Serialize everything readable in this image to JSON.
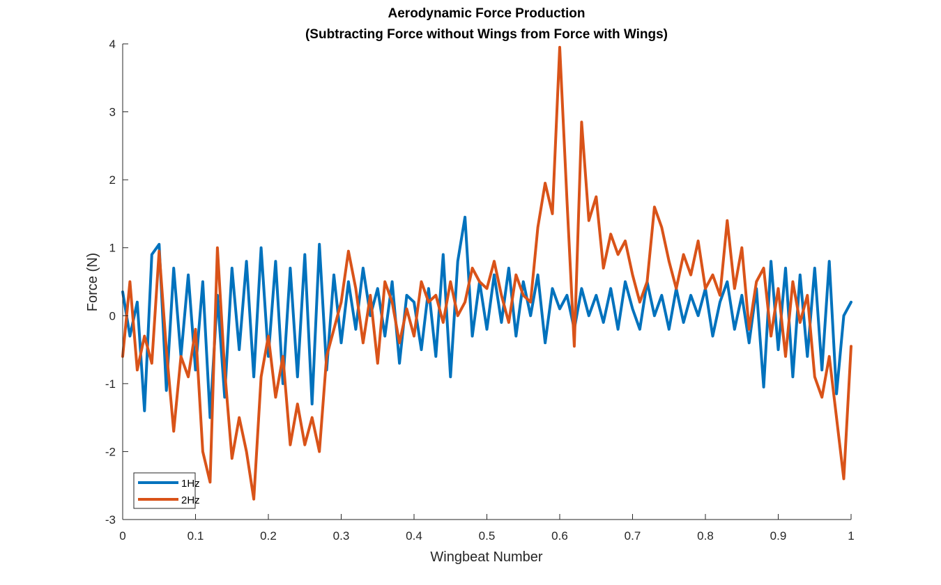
{
  "chart_data": {
    "type": "line",
    "title_line1": "Aerodynamic Force Production",
    "title_line2": "(Subtracting Force without Wings from Force with Wings)",
    "xlabel": "Wingbeat Number",
    "ylabel": "Force (N)",
    "xlim": [
      0,
      1
    ],
    "ylim": [
      -3,
      4
    ],
    "xticks": [
      0,
      0.1,
      0.2,
      0.3,
      0.4,
      0.5,
      0.6,
      0.7,
      0.8,
      0.9,
      1
    ],
    "xtick_labels": [
      "0",
      "0.1",
      "0.2",
      "0.3",
      "0.4",
      "0.5",
      "0.6",
      "0.7",
      "0.8",
      "0.9",
      "1"
    ],
    "yticks": [
      -3,
      -2,
      -1,
      0,
      1,
      2,
      3,
      4
    ],
    "ytick_labels": [
      "-3",
      "-2",
      "-1",
      "0",
      "1",
      "2",
      "3",
      "4"
    ],
    "grid": false,
    "legend_position": "bottom-left",
    "series": [
      {
        "name": "1Hz",
        "color": "#0072BD",
        "x": [
          0,
          0.01,
          0.02,
          0.03,
          0.04,
          0.05,
          0.06,
          0.07,
          0.08,
          0.09,
          0.1,
          0.11,
          0.12,
          0.13,
          0.14,
          0.15,
          0.16,
          0.17,
          0.18,
          0.19,
          0.2,
          0.21,
          0.22,
          0.23,
          0.24,
          0.25,
          0.26,
          0.27,
          0.28,
          0.29,
          0.3,
          0.31,
          0.32,
          0.33,
          0.34,
          0.35,
          0.36,
          0.37,
          0.38,
          0.39,
          0.4,
          0.41,
          0.42,
          0.43,
          0.44,
          0.45,
          0.46,
          0.47,
          0.48,
          0.49,
          0.5,
          0.51,
          0.52,
          0.53,
          0.54,
          0.55,
          0.56,
          0.57,
          0.58,
          0.59,
          0.6,
          0.61,
          0.62,
          0.63,
          0.64,
          0.65,
          0.66,
          0.67,
          0.68,
          0.69,
          0.7,
          0.71,
          0.72,
          0.73,
          0.74,
          0.75,
          0.76,
          0.77,
          0.78,
          0.79,
          0.8,
          0.81,
          0.82,
          0.83,
          0.84,
          0.85,
          0.86,
          0.87,
          0.88,
          0.89,
          0.9,
          0.91,
          0.92,
          0.93,
          0.94,
          0.95,
          0.96,
          0.97,
          0.98,
          0.99,
          1
        ],
        "values": [
          0.35,
          -0.3,
          0.2,
          -1.4,
          0.9,
          1.05,
          -1.1,
          0.7,
          -0.6,
          0.6,
          -0.8,
          0.5,
          -1.5,
          0.3,
          -1.2,
          0.7,
          -0.5,
          0.8,
          -0.9,
          1.0,
          -0.6,
          0.8,
          -1.0,
          0.7,
          -0.9,
          0.9,
          -1.3,
          1.05,
          -0.8,
          0.6,
          -0.4,
          0.5,
          -0.2,
          0.7,
          0.0,
          0.4,
          -0.3,
          0.5,
          -0.7,
          0.3,
          0.2,
          -0.5,
          0.4,
          -0.6,
          0.9,
          -0.9,
          0.8,
          1.45,
          -0.3,
          0.5,
          -0.2,
          0.6,
          -0.1,
          0.7,
          -0.3,
          0.5,
          0.0,
          0.6,
          -0.4,
          0.4,
          0.1,
          0.3,
          -0.2,
          0.4,
          0.0,
          0.3,
          -0.1,
          0.4,
          -0.2,
          0.5,
          0.1,
          -0.2,
          0.5,
          0.0,
          0.3,
          -0.2,
          0.4,
          -0.1,
          0.3,
          0.0,
          0.4,
          -0.3,
          0.2,
          0.5,
          -0.2,
          0.3,
          -0.4,
          0.4,
          -1.05,
          0.8,
          -0.5,
          0.7,
          -0.9,
          0.6,
          -0.6,
          0.7,
          -0.8,
          0.8,
          -1.15,
          0.0,
          0.2
        ]
      },
      {
        "name": "2Hz",
        "color": "#D95319",
        "x": [
          0,
          0.01,
          0.02,
          0.03,
          0.04,
          0.05,
          0.06,
          0.07,
          0.08,
          0.09,
          0.1,
          0.11,
          0.12,
          0.13,
          0.14,
          0.15,
          0.16,
          0.17,
          0.18,
          0.19,
          0.2,
          0.21,
          0.22,
          0.23,
          0.24,
          0.25,
          0.26,
          0.27,
          0.28,
          0.29,
          0.3,
          0.31,
          0.32,
          0.33,
          0.34,
          0.35,
          0.36,
          0.37,
          0.38,
          0.39,
          0.4,
          0.41,
          0.42,
          0.43,
          0.44,
          0.45,
          0.46,
          0.47,
          0.48,
          0.49,
          0.5,
          0.51,
          0.52,
          0.53,
          0.54,
          0.55,
          0.56,
          0.57,
          0.58,
          0.59,
          0.6,
          0.61,
          0.62,
          0.63,
          0.64,
          0.65,
          0.66,
          0.67,
          0.68,
          0.69,
          0.7,
          0.71,
          0.72,
          0.73,
          0.74,
          0.75,
          0.76,
          0.77,
          0.78,
          0.79,
          0.8,
          0.81,
          0.82,
          0.83,
          0.84,
          0.85,
          0.86,
          0.87,
          0.88,
          0.89,
          0.9,
          0.91,
          0.92,
          0.93,
          0.94,
          0.95,
          0.96,
          0.97,
          0.98,
          0.99,
          1
        ],
        "values": [
          -0.6,
          0.5,
          -0.8,
          -0.3,
          -0.7,
          0.95,
          -0.5,
          -1.7,
          -0.6,
          -0.9,
          -0.2,
          -2.0,
          -2.45,
          1.0,
          -0.8,
          -2.1,
          -1.5,
          -2.0,
          -2.7,
          -0.9,
          -0.3,
          -1.2,
          -0.6,
          -1.9,
          -1.3,
          -1.9,
          -1.5,
          -2.0,
          -0.6,
          -0.2,
          0.2,
          0.95,
          0.4,
          -0.4,
          0.3,
          -0.7,
          0.5,
          0.2,
          -0.4,
          0.1,
          -0.3,
          0.5,
          0.2,
          0.3,
          -0.1,
          0.5,
          0.0,
          0.2,
          0.7,
          0.5,
          0.4,
          0.8,
          0.3,
          -0.1,
          0.6,
          0.3,
          0.2,
          1.3,
          1.95,
          1.5,
          3.95,
          1.7,
          -0.45,
          2.85,
          1.4,
          1.75,
          0.7,
          1.2,
          0.9,
          1.1,
          0.6,
          0.2,
          0.5,
          1.6,
          1.3,
          0.8,
          0.4,
          0.9,
          0.6,
          1.1,
          0.4,
          0.6,
          0.3,
          1.4,
          0.4,
          1.0,
          -0.2,
          0.5,
          0.7,
          -0.3,
          0.4,
          -0.6,
          0.5,
          -0.1,
          0.3,
          -0.9,
          -1.2,
          -0.6,
          -1.5,
          -2.4,
          -0.45
        ]
      }
    ]
  }
}
